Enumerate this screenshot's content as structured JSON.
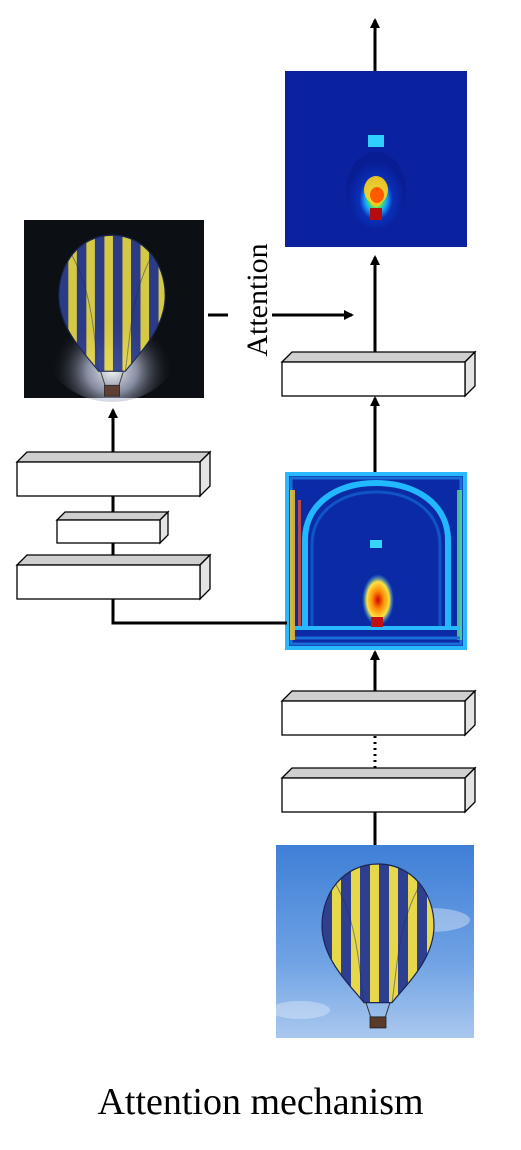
{
  "caption": "Attention mechanism",
  "attention_label": "Attention"
}
